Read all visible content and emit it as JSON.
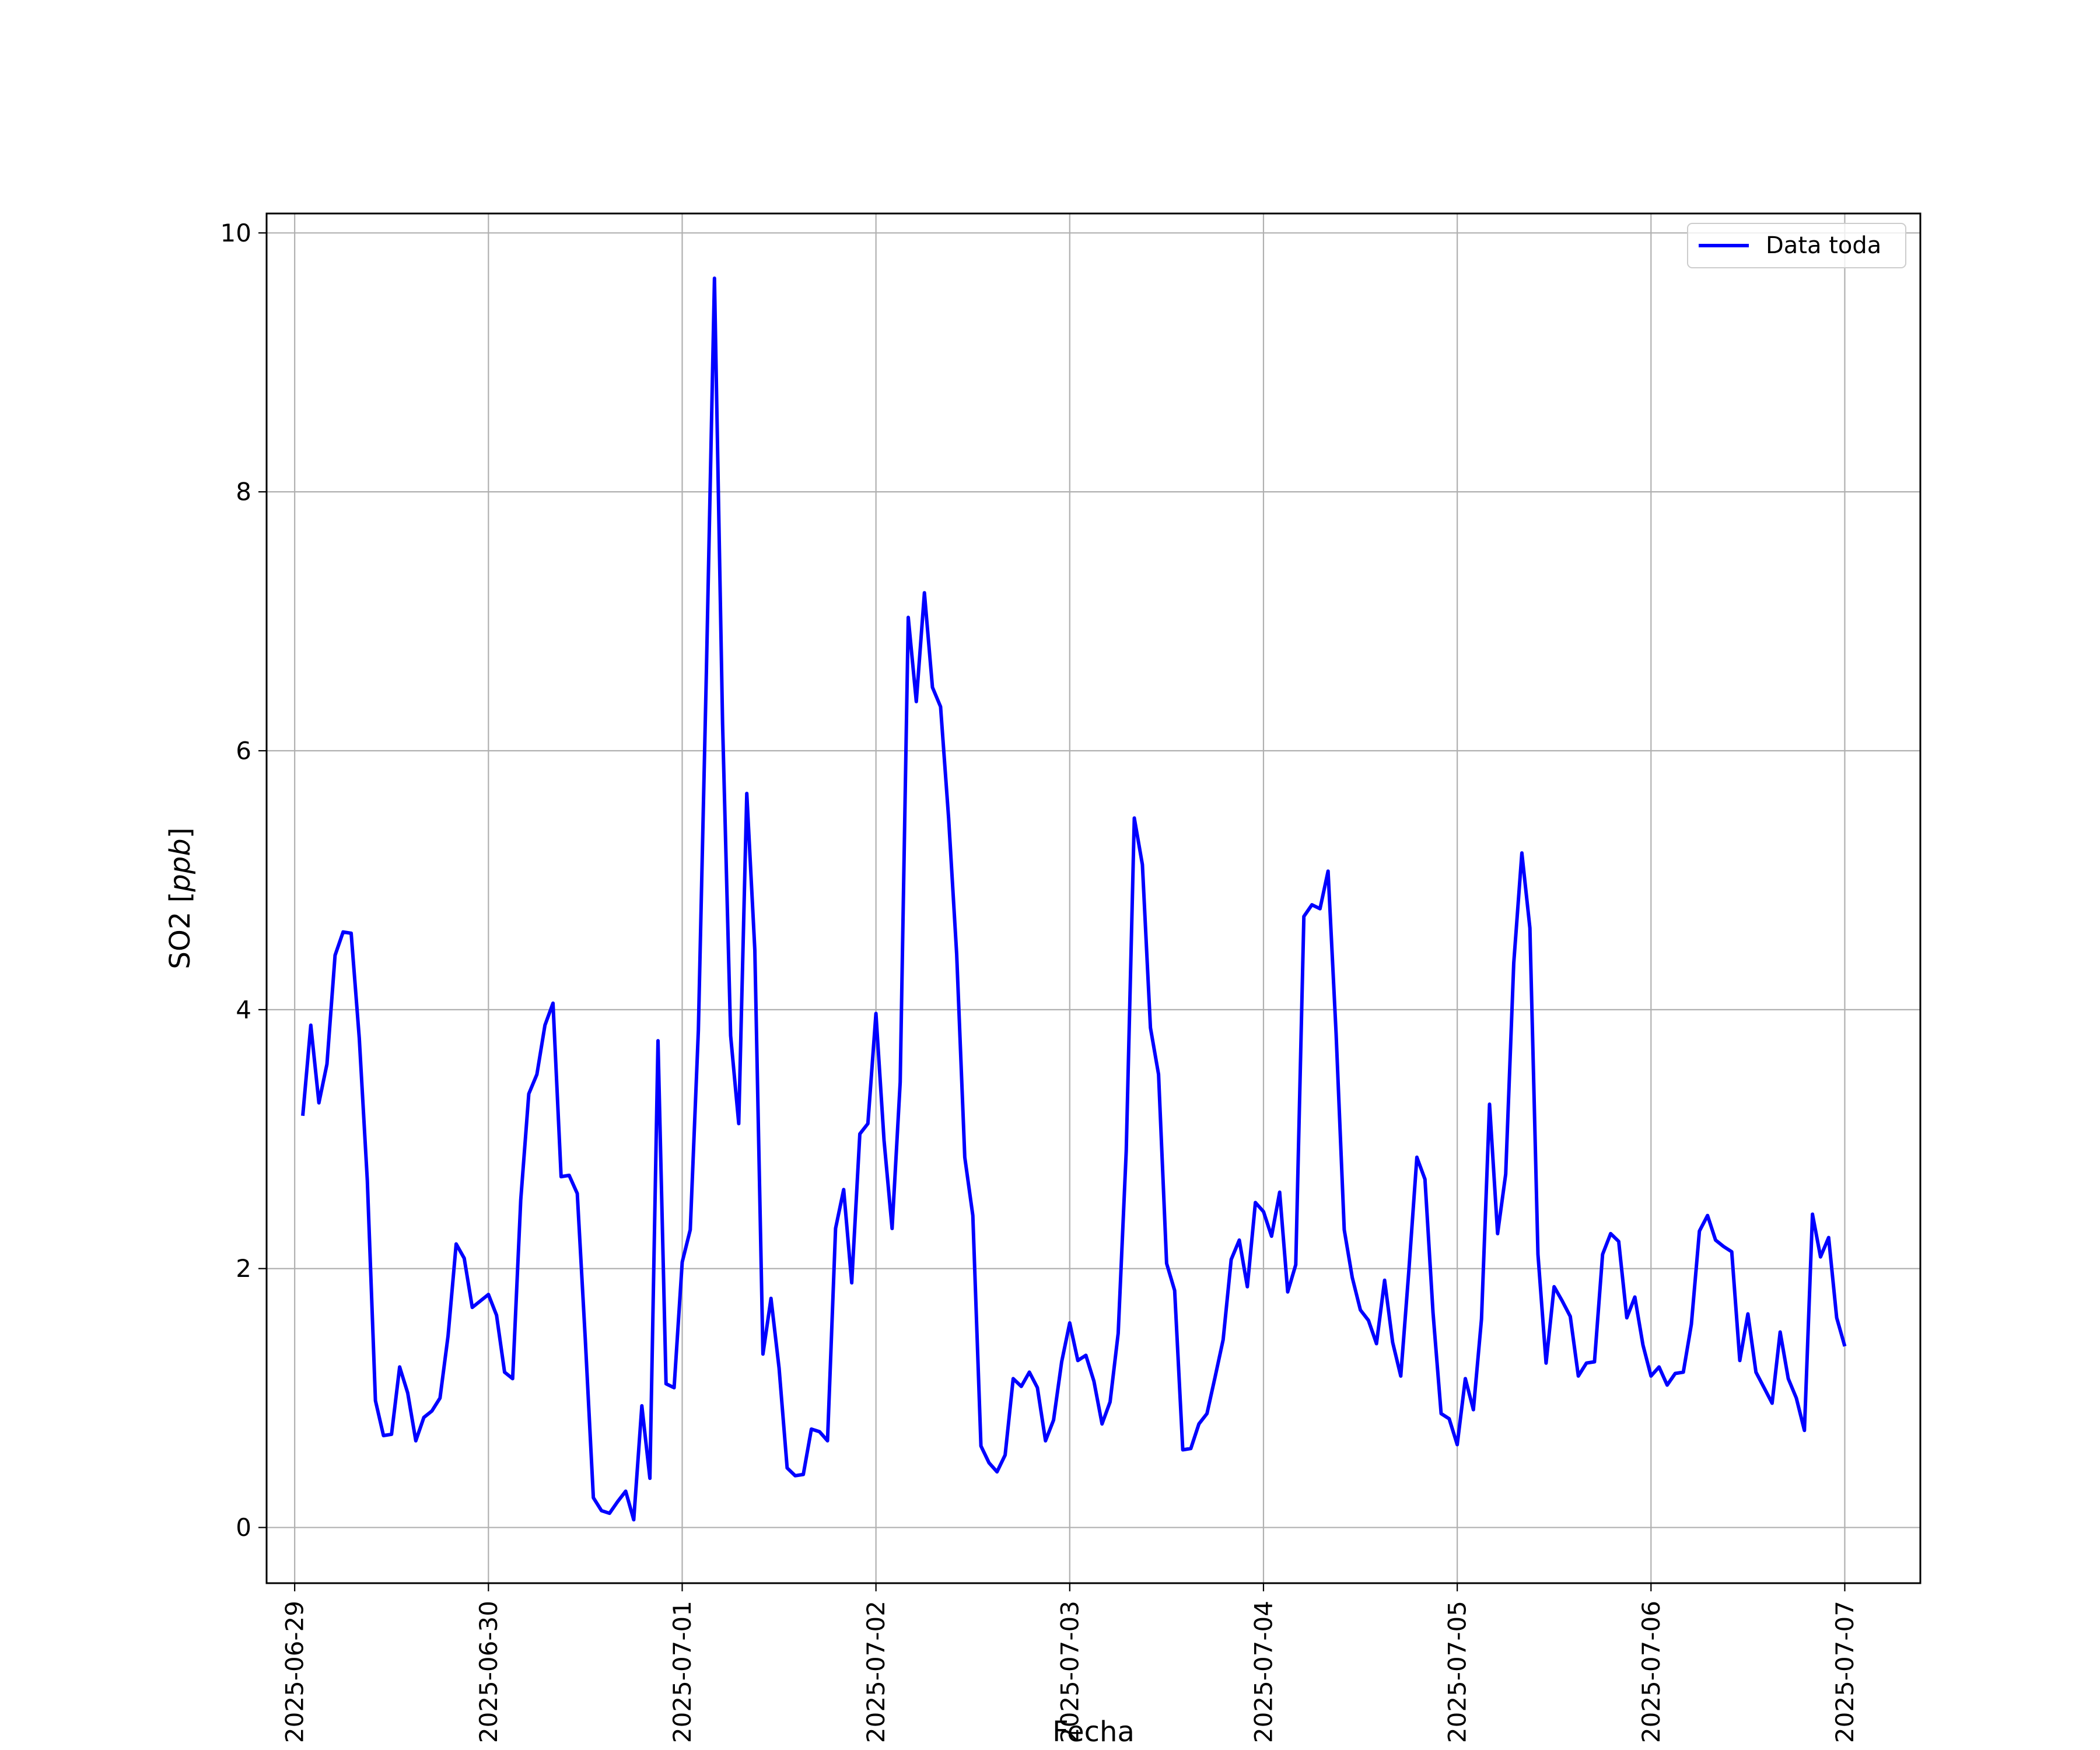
{
  "chart_data": {
    "type": "line",
    "xlabel": "Fecha",
    "ylabel_text": "SO2 [",
    "ylabel_unit": "ppb",
    "ylabel_close": "]",
    "ylim": [
      -0.43,
      10.15
    ],
    "xlim_days": [
      -0.145,
      8.39
    ],
    "xticks": [
      "2025-06-29",
      "2025-06-30",
      "2025-07-01",
      "2025-07-02",
      "2025-07-03",
      "2025-07-04",
      "2025-07-05",
      "2025-07-06",
      "2025-07-07"
    ],
    "yticks": [
      "0",
      "2",
      "4",
      "6",
      "8",
      "10"
    ],
    "yticks_values": [
      0,
      2,
      4,
      6,
      8,
      10
    ],
    "grid": true,
    "legend_position": "top-right",
    "series": [
      {
        "name": "Data toda",
        "color": "#0000ff",
        "x": [
          "2025-06-29 01:00",
          "2025-06-29 02:00",
          "2025-06-29 03:00",
          "2025-06-29 04:00",
          "2025-06-29 05:00",
          "2025-06-29 06:00",
          "2025-06-29 07:00",
          "2025-06-29 08:00",
          "2025-06-29 09:00",
          "2025-06-29 10:00",
          "2025-06-29 11:00",
          "2025-06-29 12:00",
          "2025-06-29 13:00",
          "2025-06-29 14:00",
          "2025-06-29 15:00",
          "2025-06-29 16:00",
          "2025-06-29 17:00",
          "2025-06-29 18:00",
          "2025-06-29 19:00",
          "2025-06-29 20:00",
          "2025-06-29 21:00",
          "2025-06-29 22:00",
          "2025-06-29 23:00",
          "2025-06-30 00:00",
          "2025-06-30 01:00",
          "2025-06-30 02:00",
          "2025-06-30 03:00",
          "2025-06-30 04:00",
          "2025-06-30 05:00",
          "2025-06-30 06:00",
          "2025-06-30 07:00",
          "2025-06-30 08:00",
          "2025-06-30 09:00",
          "2025-06-30 10:00",
          "2025-06-30 11:00",
          "2025-06-30 12:00",
          "2025-06-30 13:00",
          "2025-06-30 14:00",
          "2025-06-30 15:00",
          "2025-06-30 16:00",
          "2025-06-30 17:00",
          "2025-06-30 18:00",
          "2025-06-30 19:00",
          "2025-06-30 20:00",
          "2025-06-30 21:00",
          "2025-06-30 22:00",
          "2025-06-30 23:00",
          "2025-07-01 00:00",
          "2025-07-01 01:00",
          "2025-07-01 02:00",
          "2025-07-01 03:00",
          "2025-07-01 04:00",
          "2025-07-01 05:00",
          "2025-07-01 06:00",
          "2025-07-01 07:00",
          "2025-07-01 08:00",
          "2025-07-01 09:00",
          "2025-07-01 10:00",
          "2025-07-01 11:00",
          "2025-07-01 12:00",
          "2025-07-01 13:00",
          "2025-07-01 14:00",
          "2025-07-01 15:00",
          "2025-07-01 16:00",
          "2025-07-01 17:00",
          "2025-07-01 18:00",
          "2025-07-01 19:00",
          "2025-07-01 20:00",
          "2025-07-01 21:00",
          "2025-07-01 22:00",
          "2025-07-01 23:00",
          "2025-07-02 00:00",
          "2025-07-02 01:00",
          "2025-07-02 02:00",
          "2025-07-02 03:00",
          "2025-07-02 04:00",
          "2025-07-02 05:00",
          "2025-07-02 06:00",
          "2025-07-02 07:00",
          "2025-07-02 08:00",
          "2025-07-02 09:00",
          "2025-07-02 10:00",
          "2025-07-02 11:00",
          "2025-07-02 12:00",
          "2025-07-02 13:00",
          "2025-07-02 14:00",
          "2025-07-02 15:00",
          "2025-07-02 16:00",
          "2025-07-02 17:00",
          "2025-07-02 18:00",
          "2025-07-02 19:00",
          "2025-07-02 20:00",
          "2025-07-02 21:00",
          "2025-07-02 22:00",
          "2025-07-02 23:00",
          "2025-07-03 00:00",
          "2025-07-03 01:00",
          "2025-07-03 02:00",
          "2025-07-03 03:00",
          "2025-07-03 04:00",
          "2025-07-03 05:00",
          "2025-07-03 06:00",
          "2025-07-03 07:00",
          "2025-07-03 08:00",
          "2025-07-03 09:00",
          "2025-07-03 10:00",
          "2025-07-03 11:00",
          "2025-07-03 12:00",
          "2025-07-03 13:00",
          "2025-07-03 14:00",
          "2025-07-03 15:00",
          "2025-07-03 16:00",
          "2025-07-03 17:00",
          "2025-07-03 18:00",
          "2025-07-03 19:00",
          "2025-07-03 20:00",
          "2025-07-03 21:00",
          "2025-07-03 22:00",
          "2025-07-03 23:00",
          "2025-07-04 00:00",
          "2025-07-04 01:00",
          "2025-07-04 02:00",
          "2025-07-04 03:00",
          "2025-07-04 04:00",
          "2025-07-04 05:00",
          "2025-07-04 06:00",
          "2025-07-04 07:00",
          "2025-07-04 08:00",
          "2025-07-04 09:00",
          "2025-07-04 10:00",
          "2025-07-04 11:00",
          "2025-07-04 12:00",
          "2025-07-04 13:00",
          "2025-07-04 14:00",
          "2025-07-04 15:00",
          "2025-07-04 16:00",
          "2025-07-04 17:00",
          "2025-07-04 18:00",
          "2025-07-04 19:00",
          "2025-07-04 20:00",
          "2025-07-04 21:00",
          "2025-07-04 22:00",
          "2025-07-04 23:00",
          "2025-07-05 00:00",
          "2025-07-05 01:00",
          "2025-07-05 02:00",
          "2025-07-05 03:00",
          "2025-07-05 04:00",
          "2025-07-05 05:00",
          "2025-07-05 06:00",
          "2025-07-05 07:00",
          "2025-07-05 08:00",
          "2025-07-05 09:00",
          "2025-07-05 10:00",
          "2025-07-05 11:00",
          "2025-07-05 12:00",
          "2025-07-05 13:00",
          "2025-07-05 14:00",
          "2025-07-05 15:00",
          "2025-07-05 16:00",
          "2025-07-05 17:00",
          "2025-07-05 18:00",
          "2025-07-05 19:00",
          "2025-07-05 20:00",
          "2025-07-05 21:00",
          "2025-07-05 22:00",
          "2025-07-05 23:00",
          "2025-07-06 00:00",
          "2025-07-06 01:00",
          "2025-07-06 02:00",
          "2025-07-06 03:00",
          "2025-07-06 04:00",
          "2025-07-06 05:00",
          "2025-07-06 06:00",
          "2025-07-06 07:00",
          "2025-07-06 08:00",
          "2025-07-06 09:00",
          "2025-07-06 10:00",
          "2025-07-06 11:00",
          "2025-07-06 12:00",
          "2025-07-06 13:00",
          "2025-07-06 14:00",
          "2025-07-06 15:00",
          "2025-07-06 16:00",
          "2025-07-06 17:00",
          "2025-07-06 18:00",
          "2025-07-06 19:00",
          "2025-07-06 20:00",
          "2025-07-06 21:00",
          "2025-07-06 22:00",
          "2025-07-06 23:00",
          "2025-07-07 00:00"
        ],
        "y": [
          3.18,
          3.88,
          3.28,
          3.58,
          4.42,
          4.6,
          4.59,
          3.78,
          2.68,
          0.98,
          0.71,
          0.72,
          1.24,
          1.04,
          0.67,
          0.85,
          0.9,
          1.0,
          1.48,
          2.19,
          2.08,
          1.7,
          1.75,
          1.8,
          1.64,
          1.2,
          1.15,
          2.53,
          3.35,
          3.5,
          3.88,
          4.05,
          2.71,
          2.72,
          2.58,
          1.45,
          0.23,
          0.13,
          0.11,
          0.2,
          0.28,
          0.06,
          0.94,
          0.38,
          3.76,
          1.11,
          1.08,
          2.05,
          2.3,
          3.84,
          6.62,
          9.65,
          6.21,
          3.8,
          3.12,
          5.67,
          4.46,
          1.34,
          1.77,
          1.23,
          0.46,
          0.4,
          0.41,
          0.76,
          0.74,
          0.67,
          2.31,
          2.61,
          1.89,
          3.04,
          3.12,
          3.97,
          2.99,
          2.31,
          3.44,
          7.03,
          6.38,
          7.22,
          6.49,
          6.34,
          5.48,
          4.43,
          2.86,
          2.41,
          0.63,
          0.5,
          0.43,
          0.56,
          1.15,
          1.09,
          1.2,
          1.08,
          0.67,
          0.83,
          1.28,
          1.58,
          1.29,
          1.33,
          1.13,
          0.8,
          0.97,
          1.5,
          2.91,
          5.48,
          5.12,
          3.86,
          3.5,
          2.04,
          1.83,
          0.6,
          0.61,
          0.8,
          0.88,
          1.16,
          1.45,
          2.07,
          2.22,
          1.86,
          2.51,
          2.44,
          2.25,
          2.59,
          1.82,
          2.03,
          4.72,
          4.81,
          4.78,
          5.07,
          3.81,
          2.3,
          1.93,
          1.68,
          1.6,
          1.42,
          1.91,
          1.43,
          1.17,
          1.98,
          2.86,
          2.69,
          1.66,
          0.88,
          0.84,
          0.64,
          1.15,
          0.91,
          1.61,
          3.27,
          2.27,
          2.73,
          4.36,
          5.21,
          4.63,
          2.11,
          1.27,
          1.86,
          1.75,
          1.63,
          1.17,
          1.27,
          1.28,
          2.11,
          2.27,
          2.21,
          1.62,
          1.78,
          1.41,
          1.17,
          1.24,
          1.1,
          1.19,
          1.2,
          1.57,
          2.29,
          2.41,
          2.22,
          2.17,
          2.13,
          1.29,
          1.65,
          1.2,
          1.08,
          0.96,
          1.51,
          1.15,
          1.0,
          0.75,
          2.42,
          2.09,
          2.24,
          1.62,
          1.4
        ]
      }
    ]
  }
}
